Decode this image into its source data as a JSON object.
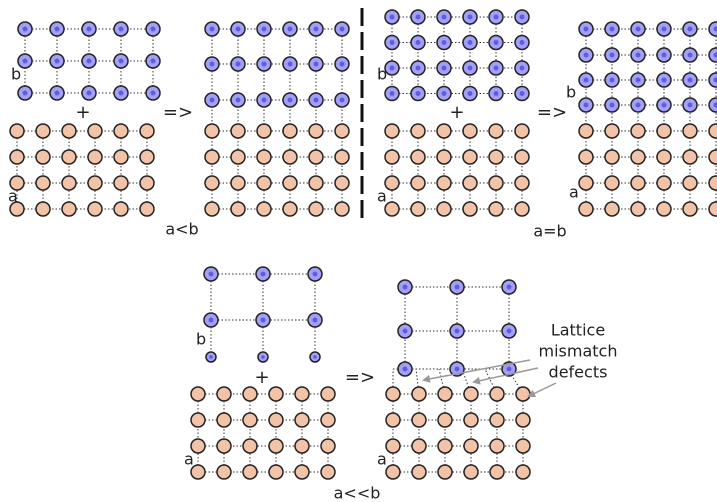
{
  "panels": [
    {
      "upper_label": "b",
      "plus": "+",
      "lower_label": "a",
      "arrow": "=>",
      "caption": "a<b"
    },
    {
      "upper_label": "b",
      "plus": "+",
      "lower_label": "a",
      "arrow": "=>",
      "result_upper_label": "b",
      "result_lower_label": "a",
      "caption": "a=b"
    },
    {
      "upper_label": "b",
      "plus": "+",
      "lower_label": "a",
      "arrow": "=>",
      "result_lower_label": "a",
      "caption": "a<<b",
      "annotation": [
        "Lattice",
        "mismatch",
        "defects"
      ]
    }
  ]
}
